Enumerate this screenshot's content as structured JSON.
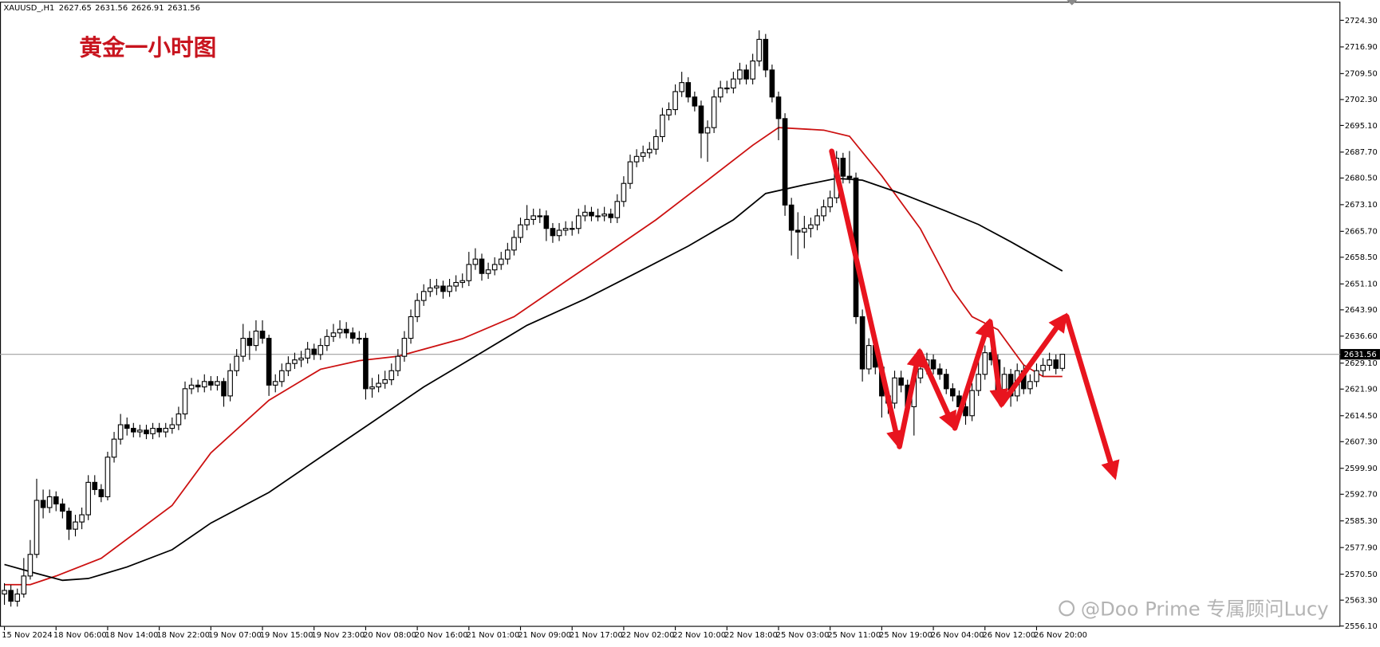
{
  "chart_data": {
    "type": "candlestick",
    "symbol": "XAUUSD_,H1",
    "title": "黄金一小时图",
    "watermark": "@Doo Prime 专属顾问Lucy",
    "bull_color": "#ffffff",
    "bear_color": "#000000",
    "price_line_color": "#a0a0a0",
    "categories": [
      "15 Nov 2024",
      null,
      null,
      null,
      null,
      null,
      null,
      null,
      "18 Nov 06:00",
      null,
      null,
      null,
      null,
      null,
      null,
      null,
      "18 Nov 14:00",
      null,
      null,
      null,
      null,
      null,
      null,
      null,
      "18 Nov 22:00",
      null,
      null,
      null,
      null,
      null,
      null,
      null,
      "19 Nov 07:00",
      null,
      null,
      null,
      null,
      null,
      null,
      null,
      "19 Nov 15:00",
      null,
      null,
      null,
      null,
      null,
      null,
      null,
      "19 Nov 23:00",
      null,
      null,
      null,
      null,
      null,
      null,
      null,
      "20 Nov 08:00",
      null,
      null,
      null,
      null,
      null,
      null,
      null,
      "20 Nov 16:00",
      null,
      null,
      null,
      null,
      null,
      null,
      null,
      "21 Nov 01:00",
      null,
      null,
      null,
      null,
      null,
      null,
      null,
      "21 Nov 09:00",
      null,
      null,
      null,
      null,
      null,
      null,
      null,
      "21 Nov 17:00",
      null,
      null,
      null,
      null,
      null,
      null,
      null,
      "22 Nov 02:00",
      null,
      null,
      null,
      null,
      null,
      null,
      null,
      "22 Nov 10:00",
      null,
      null,
      null,
      null,
      null,
      null,
      null,
      "22 Nov 18:00",
      null,
      null,
      null,
      null,
      null,
      null,
      null,
      "25 Nov 03:00",
      null,
      null,
      null,
      null,
      null,
      null,
      null,
      "25 Nov 11:00",
      null,
      null,
      null,
      null,
      null,
      null,
      null,
      "25 Nov 19:00",
      null,
      null,
      null,
      null,
      null,
      null,
      null,
      "26 Nov 04:00",
      null,
      null,
      null,
      null,
      null,
      null,
      null,
      "26 Nov 12:00",
      null,
      null,
      null,
      null,
      null,
      null,
      null,
      "26 Nov 20:00",
      null,
      null,
      null,
      null
    ],
    "ohlc": [
      [
        2565,
        2568,
        2562,
        2566
      ],
      [
        2566,
        2567.5,
        2561.5,
        2563
      ],
      [
        2563,
        2566.5,
        2561.5,
        2565
      ],
      [
        2565,
        2575,
        2564,
        2570
      ],
      [
        2570,
        2580,
        2569,
        2576
      ],
      [
        2576,
        2597,
        2575,
        2591
      ],
      [
        2591,
        2594,
        2586,
        2589
      ],
      [
        2589,
        2594,
        2587.5,
        2592
      ],
      [
        2592,
        2593.5,
        2588,
        2590
      ],
      [
        2590,
        2591.5,
        2586,
        2588
      ],
      [
        2588,
        2589,
        2580,
        2583
      ],
      [
        2583,
        2587,
        2581,
        2585
      ],
      [
        2585,
        2589,
        2583,
        2587
      ],
      [
        2587,
        2598,
        2585.5,
        2596
      ],
      [
        2596,
        2598,
        2592.5,
        2594
      ],
      [
        2594,
        2595.5,
        2590.5,
        2592
      ],
      [
        2592,
        2604.5,
        2591,
        2603
      ],
      [
        2603,
        2610,
        2601.5,
        2608
      ],
      [
        2608,
        2615,
        2606.5,
        2612
      ],
      [
        2612,
        2614,
        2609,
        2611
      ],
      [
        2611,
        2612.5,
        2608.5,
        2610
      ],
      [
        2610,
        2612,
        2608.5,
        2610.5
      ],
      [
        2610.5,
        2612,
        2608,
        2609.5
      ],
      [
        2609.5,
        2612.5,
        2608,
        2611
      ],
      [
        2611,
        2612.5,
        2608.5,
        2610
      ],
      [
        2610,
        2612.5,
        2608.5,
        2611
      ],
      [
        2611,
        2614,
        2609.5,
        2612
      ],
      [
        2612,
        2617,
        2610.5,
        2615
      ],
      [
        2615,
        2624,
        2613.5,
        2622
      ],
      [
        2622,
        2625,
        2620.5,
        2623
      ],
      [
        2623,
        2624.5,
        2621,
        2622.5
      ],
      [
        2622.5,
        2626,
        2621,
        2624
      ],
      [
        2624,
        2625.5,
        2621.5,
        2623
      ],
      [
        2623,
        2625.5,
        2621.5,
        2624
      ],
      [
        2624,
        2625,
        2617,
        2620
      ],
      [
        2620,
        2629,
        2618.5,
        2627
      ],
      [
        2627,
        2633,
        2625.5,
        2631
      ],
      [
        2631,
        2640,
        2629.5,
        2636
      ],
      [
        2636,
        2638,
        2630,
        2634
      ],
      [
        2634,
        2641,
        2632.5,
        2638
      ],
      [
        2638,
        2641,
        2634.5,
        2636
      ],
      [
        2636,
        2637,
        2620,
        2623
      ],
      [
        2623,
        2626,
        2621,
        2624
      ],
      [
        2624,
        2629,
        2622.5,
        2627
      ],
      [
        2627,
        2631,
        2625.5,
        2629
      ],
      [
        2629,
        2632,
        2627.5,
        2630
      ],
      [
        2630,
        2632.5,
        2628,
        2630.5
      ],
      [
        2630.5,
        2635,
        2629,
        2633
      ],
      [
        2633,
        2634.5,
        2630,
        2631.5
      ],
      [
        2631.5,
        2636,
        2630,
        2634
      ],
      [
        2634,
        2638.5,
        2632.5,
        2636.5
      ],
      [
        2636.5,
        2640,
        2635,
        2637.5
      ],
      [
        2637.5,
        2641,
        2636,
        2638.5
      ],
      [
        2638.5,
        2640.5,
        2636,
        2637.5
      ],
      [
        2637.5,
        2639,
        2634.5,
        2636
      ],
      [
        2636,
        2638,
        2634.5,
        2636
      ],
      [
        2636,
        2637.5,
        2619,
        2622
      ],
      [
        2622,
        2625,
        2619.5,
        2622.5
      ],
      [
        2622.5,
        2626,
        2621,
        2623.5
      ],
      [
        2623.5,
        2627,
        2622,
        2624.5
      ],
      [
        2624.5,
        2629,
        2623,
        2627
      ],
      [
        2627,
        2633,
        2625.5,
        2631
      ],
      [
        2631,
        2638,
        2629.5,
        2636
      ],
      [
        2636,
        2644,
        2634.5,
        2642
      ],
      [
        2642,
        2648.5,
        2640.5,
        2646.5
      ],
      [
        2646.5,
        2651,
        2645,
        2649
      ],
      [
        2649,
        2652.5,
        2647.5,
        2650
      ],
      [
        2650,
        2652.5,
        2648,
        2650.5
      ],
      [
        2650.5,
        2652,
        2647,
        2649
      ],
      [
        2649,
        2652.5,
        2647.5,
        2650.5
      ],
      [
        2650.5,
        2653.5,
        2649,
        2651.5
      ],
      [
        2651.5,
        2654,
        2650,
        2652
      ],
      [
        2652,
        2660,
        2650.5,
        2656.5
      ],
      [
        2656.5,
        2661,
        2655,
        2658
      ],
      [
        2658,
        2659.5,
        2652,
        2654
      ],
      [
        2654,
        2657,
        2652.5,
        2655
      ],
      [
        2655,
        2658.5,
        2653.5,
        2656.5
      ],
      [
        2656.5,
        2660,
        2655,
        2658
      ],
      [
        2658,
        2662.5,
        2656.5,
        2660.5
      ],
      [
        2660.5,
        2666,
        2659,
        2664
      ],
      [
        2664,
        2669.5,
        2662.5,
        2667.5
      ],
      [
        2667.5,
        2673,
        2666,
        2669
      ],
      [
        2669,
        2672,
        2667.5,
        2670
      ],
      [
        2670,
        2672,
        2668,
        2670
      ],
      [
        2670,
        2671.5,
        2663,
        2666.5
      ],
      [
        2666.5,
        2668,
        2662.5,
        2664.5
      ],
      [
        2664.5,
        2668,
        2663,
        2666
      ],
      [
        2666,
        2668.5,
        2664.5,
        2666.5
      ],
      [
        2666.5,
        2668.5,
        2664.5,
        2666.5
      ],
      [
        2666.5,
        2672,
        2665,
        2670
      ],
      [
        2670,
        2673,
        2668.5,
        2671
      ],
      [
        2671,
        2672.5,
        2668.5,
        2670
      ],
      [
        2670,
        2672,
        2668.5,
        2670
      ],
      [
        2670,
        2672.5,
        2668.5,
        2670.5
      ],
      [
        2670.5,
        2672,
        2668,
        2669.5
      ],
      [
        2669.5,
        2676,
        2668,
        2674
      ],
      [
        2674,
        2681,
        2672.5,
        2679
      ],
      [
        2679,
        2687,
        2677.5,
        2685
      ],
      [
        2685,
        2688.5,
        2683.5,
        2686.5
      ],
      [
        2686.5,
        2689.5,
        2685,
        2687.5
      ],
      [
        2687.5,
        2690.5,
        2686,
        2688.5
      ],
      [
        2688.5,
        2694,
        2687,
        2692
      ],
      [
        2692,
        2700,
        2690.5,
        2698
      ],
      [
        2698,
        2701.5,
        2696.5,
        2699.5
      ],
      [
        2699.5,
        2706.5,
        2698,
        2704.5
      ],
      [
        2704.5,
        2710,
        2703,
        2707
      ],
      [
        2707,
        2708.5,
        2701.5,
        2703
      ],
      [
        2703,
        2704.5,
        2699,
        2700.5
      ],
      [
        2700.5,
        2702,
        2686,
        2693
      ],
      [
        2693,
        2696.5,
        2685,
        2694.5
      ],
      [
        2694.5,
        2705,
        2693,
        2703
      ],
      [
        2703,
        2707.5,
        2701.5,
        2705.5
      ],
      [
        2705.5,
        2707.5,
        2704,
        2705.5
      ],
      [
        2705.5,
        2710,
        2704,
        2708
      ],
      [
        2708,
        2712.5,
        2706.5,
        2710.5
      ],
      [
        2710.5,
        2712,
        2706.5,
        2708
      ],
      [
        2708,
        2715,
        2706.5,
        2713
      ],
      [
        2713,
        2721.5,
        2711.5,
        2719
      ],
      [
        2719,
        2720.5,
        2708.5,
        2710.5
      ],
      [
        2710.5,
        2712,
        2701.5,
        2703
      ],
      [
        2703,
        2704.5,
        2691,
        2697
      ],
      [
        2697,
        2698.5,
        2670,
        2673
      ],
      [
        2673,
        2675,
        2659,
        2666
      ],
      [
        2666,
        2671,
        2658,
        2665.5
      ],
      [
        2665.5,
        2670,
        2661,
        2666.5
      ],
      [
        2666.5,
        2669.5,
        2664,
        2667.5
      ],
      [
        2667.5,
        2672,
        2666,
        2670
      ],
      [
        2670,
        2674.5,
        2668.5,
        2672.5
      ],
      [
        2672.5,
        2677,
        2671,
        2675
      ],
      [
        2675,
        2688,
        2673.5,
        2686
      ],
      [
        2686,
        2687.5,
        2679,
        2681
      ],
      [
        2681,
        2688,
        2679,
        2680.5
      ],
      [
        2680.5,
        2682,
        2640,
        2642
      ],
      [
        2642,
        2644,
        2624,
        2627.5
      ],
      [
        2627.5,
        2636,
        2626,
        2634
      ],
      [
        2634,
        2635.5,
        2626,
        2628
      ],
      [
        2628,
        2629.5,
        2614,
        2620
      ],
      [
        2620,
        2622,
        2615,
        2618
      ],
      [
        2618,
        2627,
        2616.5,
        2625
      ],
      [
        2625,
        2627,
        2621,
        2623
      ],
      [
        2623,
        2624.5,
        2615.5,
        2617
      ],
      [
        2617,
        2627,
        2609,
        2625
      ],
      [
        2625,
        2629.5,
        2623.5,
        2627.5
      ],
      [
        2627.5,
        2632,
        2626,
        2630
      ],
      [
        2630,
        2631.5,
        2626,
        2627.5
      ],
      [
        2627.5,
        2629,
        2624.5,
        2626
      ],
      [
        2626,
        2627.5,
        2620.5,
        2622
      ],
      [
        2622,
        2623.5,
        2618.5,
        2620
      ],
      [
        2620,
        2621.5,
        2615.5,
        2617
      ],
      [
        2617,
        2618.5,
        2612,
        2614.5
      ],
      [
        2614.5,
        2623.5,
        2613,
        2621.5
      ],
      [
        2621.5,
        2631,
        2620,
        2626
      ],
      [
        2626,
        2634,
        2624.5,
        2632
      ],
      [
        2632,
        2633,
        2628.5,
        2630
      ],
      [
        2630,
        2631.5,
        2619.5,
        2621
      ],
      [
        2621,
        2628,
        2619.5,
        2626
      ],
      [
        2626,
        2627.5,
        2617,
        2620
      ],
      [
        2620,
        2629,
        2618.5,
        2627
      ],
      [
        2627,
        2628.5,
        2620.5,
        2622
      ],
      [
        2622,
        2626,
        2620.5,
        2624
      ],
      [
        2624,
        2629,
        2622.5,
        2627
      ],
      [
        2627,
        2630.5,
        2625.5,
        2628.5
      ],
      [
        2628.5,
        2632,
        2627,
        2630
      ],
      [
        2630,
        2631.5,
        2626,
        2627.65
      ],
      [
        2627.65,
        2631.56,
        2626.91,
        2631.56
      ]
    ],
    "lines": [
      {
        "color": "#cc1010",
        "x": [
          0,
          4,
          8,
          15,
          26,
          32,
          41,
          49,
          55,
          61,
          71,
          79,
          87,
          94,
          101,
          109,
          116,
          120,
          127,
          131,
          136,
          142,
          147,
          150,
          154,
          158,
          161,
          164
        ],
        "values": [
          2567.6,
          2567.6,
          2570,
          2574.9,
          2589.6,
          2604.2,
          2618.8,
          2627.4,
          2629.8,
          2631,
          2635.9,
          2642,
          2651.8,
          2660.3,
          2668.9,
          2679.9,
          2689.6,
          2694.5,
          2693.8,
          2692.1,
          2681.1,
          2666.4,
          2649.4,
          2642,
          2638.4,
          2628.6,
          2625.4,
          2625.4
        ]
      },
      {
        "color": "#000000",
        "x": [
          0,
          5,
          9,
          13,
          19,
          26,
          32,
          41,
          49,
          57,
          65,
          73,
          81,
          90,
          98,
          106,
          113,
          118,
          124,
          129,
          133,
          139,
          146,
          151,
          156,
          164
        ],
        "values": [
          2573.2,
          2570.7,
          2568.8,
          2569.3,
          2572.5,
          2577.3,
          2584.7,
          2593.2,
          2603,
          2612.7,
          2622.5,
          2631,
          2639.6,
          2646.9,
          2654.2,
          2661.6,
          2668.9,
          2676.2,
          2678.6,
          2680.4,
          2679.9,
          2676.2,
          2671.3,
          2667.6,
          2662.8,
          2654.7
        ]
      }
    ],
    "ylim": [
      2555.9,
      2729.2
    ],
    "yticks": [
      {
        "value": 2724.3,
        "label": "2724.30"
      },
      {
        "value": 2716.9,
        "label": "2716.90"
      },
      {
        "value": 2709.5,
        "label": "2709.50"
      },
      {
        "value": 2702.3,
        "label": "2702.30"
      },
      {
        "value": 2695.1,
        "label": "2695.10"
      },
      {
        "value": 2687.7,
        "label": "2687.70"
      },
      {
        "value": 2680.5,
        "label": "2680.50"
      },
      {
        "value": 2673.1,
        "label": "2673.10"
      },
      {
        "value": 2665.7,
        "label": "2665.70"
      },
      {
        "value": 2658.5,
        "label": "2658.50"
      },
      {
        "value": 2651.1,
        "label": "2651.10"
      },
      {
        "value": 2643.9,
        "label": "2643.90"
      },
      {
        "value": 2636.6,
        "label": "2636.60"
      },
      {
        "value": 2629.1,
        "label": "2629.10"
      },
      {
        "value": 2621.9,
        "label": "2621.90"
      },
      {
        "value": 2614.5,
        "label": "2614.50"
      },
      {
        "value": 2607.3,
        "label": "2607.30"
      },
      {
        "value": 2599.9,
        "label": "2599.90"
      },
      {
        "value": 2592.7,
        "label": "2592.70"
      },
      {
        "value": 2585.3,
        "label": "2585.30"
      },
      {
        "value": 2577.9,
        "label": "2577.90"
      },
      {
        "value": 2570.5,
        "label": "2570.50"
      },
      {
        "value": 2563.3,
        "label": "2563.30"
      },
      {
        "value": 2556.1,
        "label": "2556.10"
      }
    ],
    "grid": false
  }
}
